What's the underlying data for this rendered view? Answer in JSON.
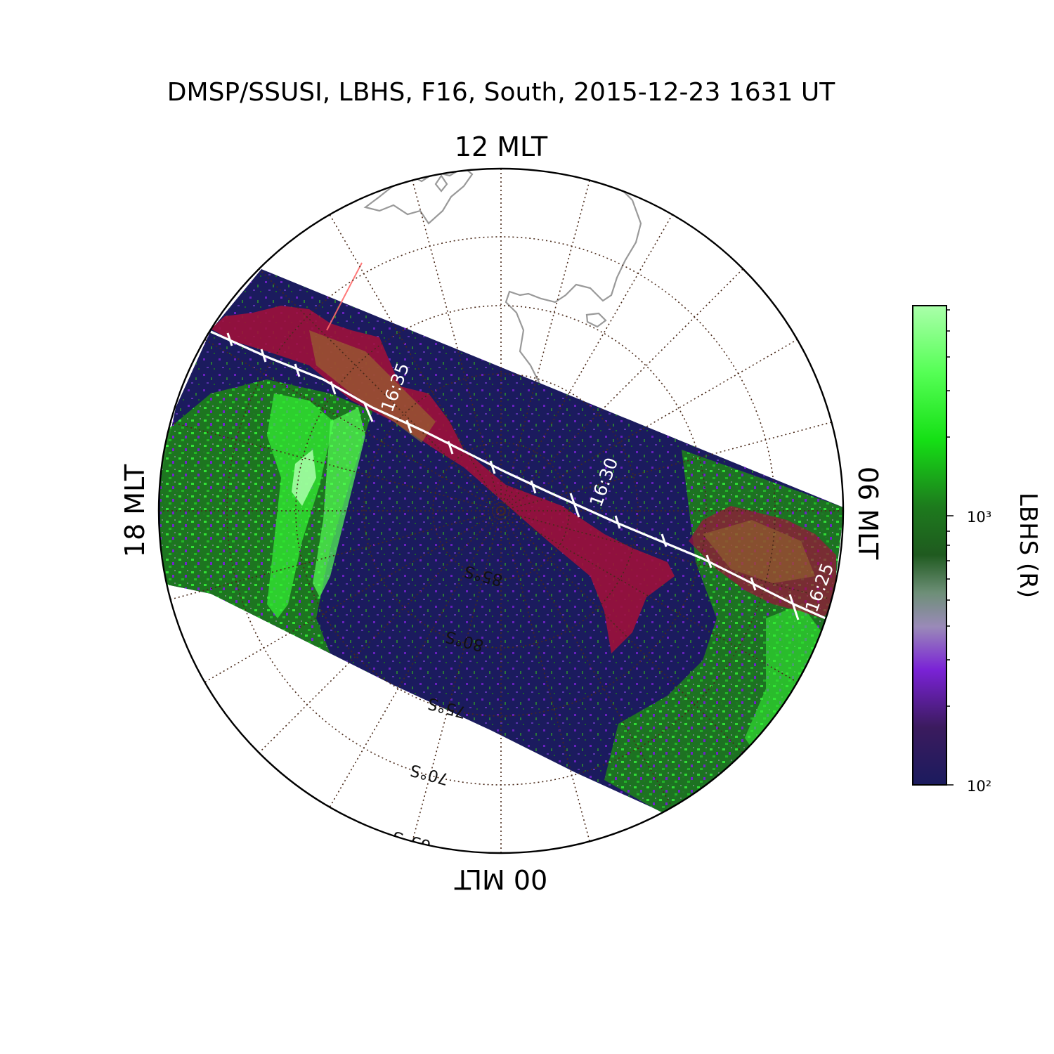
{
  "title": "DMSP/SSUSI, LBHS, F16, South, 2015-12-23 1631 UT",
  "mlt_labels": {
    "top": "12 MLT",
    "right": "06 MLT",
    "bottom": "00 MLT",
    "left": "18 MLT"
  },
  "latitude_labels": [
    "85°S",
    "80°S",
    "75°S",
    "70°S",
    "65°S"
  ],
  "orbit": {
    "times": [
      "16:35",
      "16:30",
      "16:25"
    ]
  },
  "colorbar": {
    "label": "LBHS (R)",
    "scale": "log",
    "range": [
      100,
      5000
    ],
    "tick_labels": [
      "10²",
      "10³"
    ],
    "colors": [
      "#1b1b5e",
      "#3b1b5e",
      "#7a22d6",
      "#9a8ab8",
      "#6e8f78",
      "#1f5a1f",
      "#1d7a1d",
      "#15e015",
      "#55ff55",
      "#aaffaa"
    ]
  },
  "colors": {
    "background_emission": "#1b1b5e",
    "aurora_green": "#22e022",
    "overlay_red": "#a0103a",
    "orbit_track": "#ffffff",
    "coastline": "#999999",
    "grid": "#5a3a2a"
  }
}
